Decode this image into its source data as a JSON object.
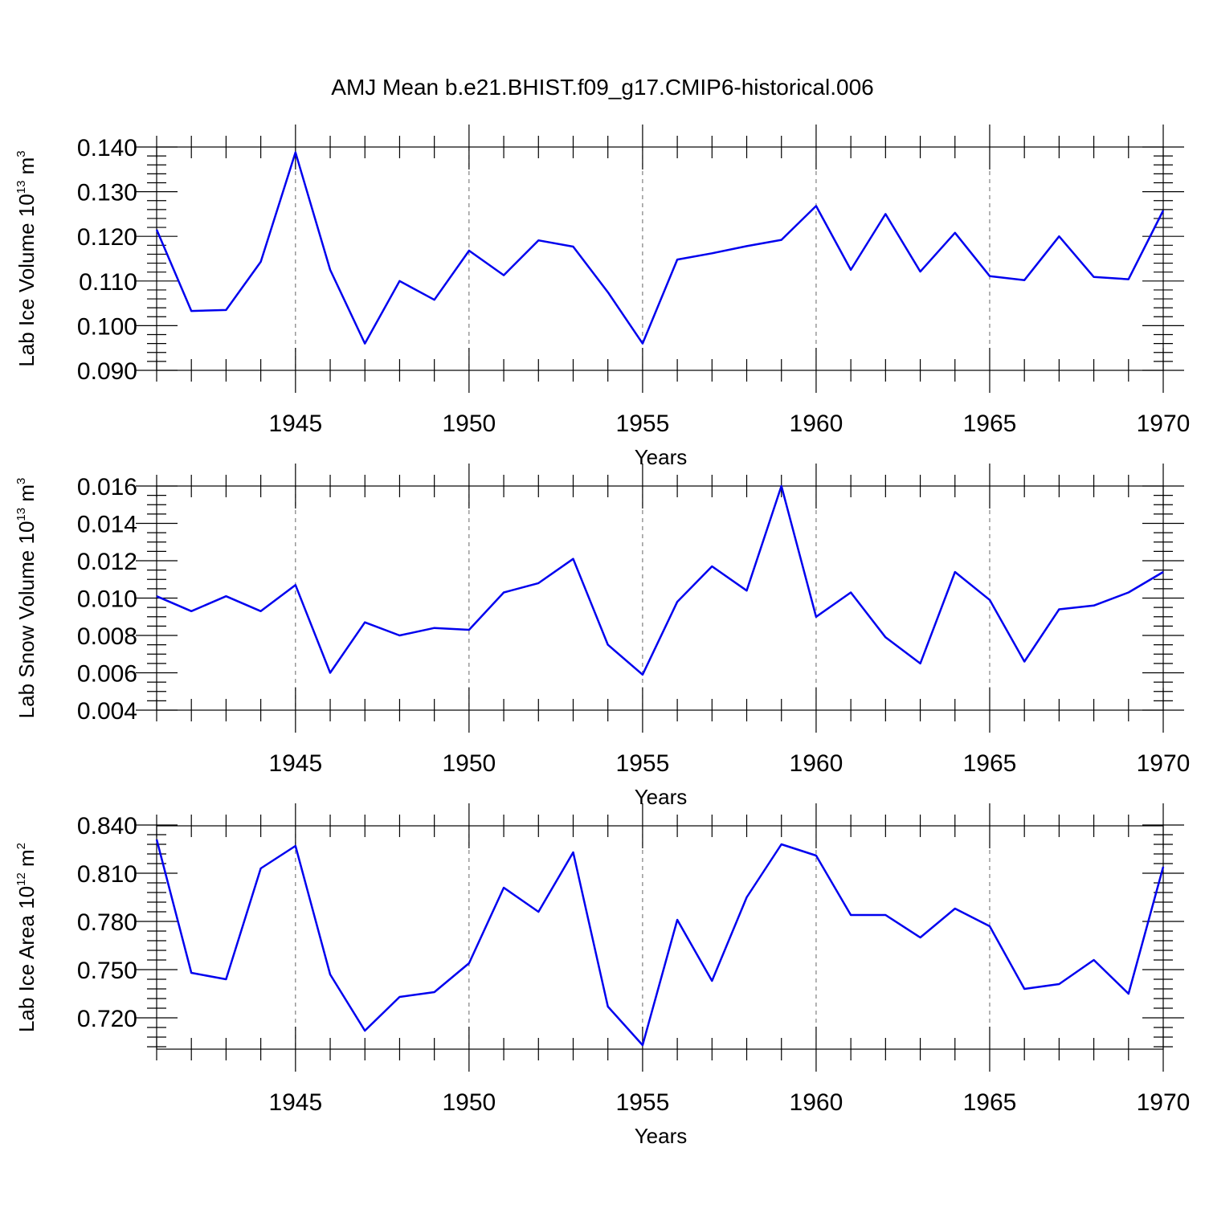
{
  "title": "AMJ Mean b.e21.BHIST.f09_g17.CMIP6-historical.006",
  "colors": {
    "line": "#0000ee",
    "axis": "#000000",
    "grid": "#666666"
  },
  "chart_data": [
    {
      "type": "line",
      "name": "ice-volume",
      "ylabel_parts": [
        "Lab Ice Volume 10",
        "13",
        " m",
        "3"
      ],
      "xlabel": "Years",
      "xlim": [
        1941,
        1970
      ],
      "ylim": [
        0.09,
        0.14
      ],
      "yticks": [
        0.09,
        0.1,
        0.11,
        0.12,
        0.13,
        0.14
      ],
      "ytick_labels": [
        "0.090",
        "0.100",
        "0.110",
        "0.120",
        "0.130",
        "0.140"
      ],
      "yminor_step": 0.002,
      "xticks": [
        1945,
        1950,
        1955,
        1960,
        1965,
        1970
      ],
      "xtick_labels": [
        "1945",
        "1950",
        "1955",
        "1960",
        "1965",
        "1970"
      ],
      "x": [
        1941,
        1942,
        1943,
        1944,
        1945,
        1946,
        1947,
        1948,
        1949,
        1950,
        1951,
        1952,
        1953,
        1954,
        1955,
        1956,
        1957,
        1958,
        1959,
        1960,
        1961,
        1962,
        1963,
        1964,
        1965,
        1966,
        1967,
        1968,
        1969,
        1970
      ],
      "values": [
        0.1215,
        0.1033,
        0.1035,
        0.1143,
        0.1388,
        0.1125,
        0.096,
        0.11,
        0.1058,
        0.1168,
        0.1113,
        0.1191,
        0.1177,
        0.1075,
        0.096,
        0.1148,
        0.1162,
        0.1178,
        0.1192,
        0.1268,
        0.1125,
        0.125,
        0.1121,
        0.1208,
        0.1111,
        0.1102,
        0.12,
        0.1109,
        0.1104,
        0.1258
      ]
    },
    {
      "type": "line",
      "name": "snow-volume",
      "ylabel_parts": [
        "Lab Snow Volume 10",
        "13",
        " m",
        "3"
      ],
      "xlabel": "Years",
      "xlim": [
        1941,
        1970
      ],
      "ylim": [
        0.004,
        0.016
      ],
      "yticks": [
        0.004,
        0.006,
        0.008,
        0.01,
        0.012,
        0.014,
        0.016
      ],
      "ytick_labels": [
        "0.004",
        "0.006",
        "0.008",
        "0.010",
        "0.012",
        "0.014",
        "0.016"
      ],
      "yminor_step": 0.0005,
      "xticks": [
        1945,
        1950,
        1955,
        1960,
        1965,
        1970
      ],
      "xtick_labels": [
        "1945",
        "1950",
        "1955",
        "1960",
        "1965",
        "1970"
      ],
      "x": [
        1941,
        1942,
        1943,
        1944,
        1945,
        1946,
        1947,
        1948,
        1949,
        1950,
        1951,
        1952,
        1953,
        1954,
        1955,
        1956,
        1957,
        1958,
        1959,
        1960,
        1961,
        1962,
        1963,
        1964,
        1965,
        1966,
        1967,
        1968,
        1969,
        1970
      ],
      "values": [
        0.0101,
        0.0093,
        0.0101,
        0.0093,
        0.0107,
        0.006,
        0.0087,
        0.008,
        0.0084,
        0.0083,
        0.0103,
        0.0108,
        0.0121,
        0.0075,
        0.0059,
        0.0098,
        0.0117,
        0.0104,
        0.016,
        0.009,
        0.0103,
        0.0079,
        0.0065,
        0.0114,
        0.0099,
        0.0066,
        0.0094,
        0.0096,
        0.0103,
        0.0114
      ]
    },
    {
      "type": "line",
      "name": "ice-area",
      "ylabel_parts": [
        "Lab Ice Area 10",
        "12",
        " m",
        "2"
      ],
      "xlabel": "Years",
      "xlim": [
        1941,
        1970
      ],
      "ylim": [
        0.7005,
        0.8395
      ],
      "yticks": [
        0.72,
        0.75,
        0.78,
        0.81,
        0.84
      ],
      "ytick_labels": [
        "0.720",
        "0.750",
        "0.780",
        "0.810",
        "0.840"
      ],
      "yminor_step": 0.006,
      "xticks": [
        1945,
        1950,
        1955,
        1960,
        1965,
        1970
      ],
      "xtick_labels": [
        "1945",
        "1950",
        "1955",
        "1960",
        "1965",
        "1970"
      ],
      "x": [
        1941,
        1942,
        1943,
        1944,
        1945,
        1946,
        1947,
        1948,
        1949,
        1950,
        1951,
        1952,
        1953,
        1954,
        1955,
        1956,
        1957,
        1958,
        1959,
        1960,
        1961,
        1962,
        1963,
        1964,
        1965,
        1966,
        1967,
        1968,
        1969,
        1970
      ],
      "values": [
        0.831,
        0.748,
        0.744,
        0.813,
        0.827,
        0.747,
        0.712,
        0.733,
        0.736,
        0.754,
        0.801,
        0.786,
        0.823,
        0.727,
        0.703,
        0.781,
        0.743,
        0.795,
        0.828,
        0.821,
        0.784,
        0.784,
        0.77,
        0.788,
        0.777,
        0.738,
        0.741,
        0.756,
        0.735,
        0.814
      ]
    }
  ]
}
